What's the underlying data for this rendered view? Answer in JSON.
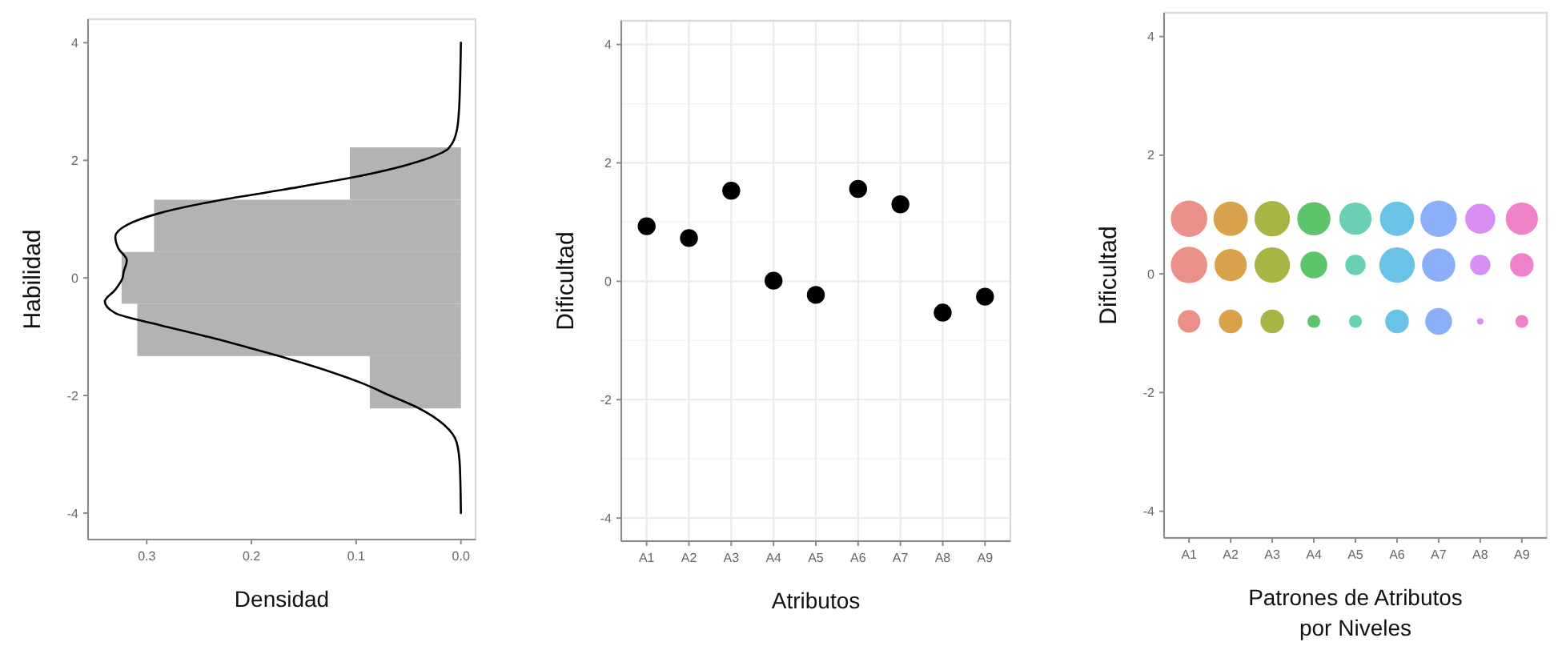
{
  "chart_data": [
    {
      "type": "histogram",
      "orientation": "horizontal",
      "xlabel": "Densidad",
      "ylabel": "Habilidad",
      "bins": [
        -2.22,
        -1.33,
        -0.44,
        0.44,
        1.33,
        2.22
      ],
      "series": [
        {
          "type": "histogram",
          "color": "#b3b3b3",
          "values": [
            0.087,
            0.309,
            0.324,
            0.293,
            0.106
          ]
        },
        {
          "type": "line",
          "color": "#000000",
          "x": [
            -4,
            -3.2,
            -2.8,
            -2.5,
            -2.2,
            -2.0,
            -1.8,
            -1.6,
            -1.4,
            -1.2,
            -1.0,
            -0.8,
            -0.6,
            -0.4,
            -0.2,
            0,
            0.1,
            0.3,
            0.5,
            0.7,
            0.9,
            1.1,
            1.3,
            1.5,
            1.7,
            2.0,
            2.2,
            2.5,
            2.8,
            3.2,
            4
          ],
          "values": [
            0,
            0.001,
            0.004,
            0.016,
            0.042,
            0.068,
            0.093,
            0.124,
            0.16,
            0.2,
            0.242,
            0.288,
            0.33,
            0.34,
            0.33,
            0.323,
            0.322,
            0.319,
            0.327,
            0.33,
            0.319,
            0.288,
            0.237,
            0.17,
            0.106,
            0.037,
            0.012,
            0.004,
            0.002,
            0.001,
            0
          ]
        }
      ],
      "xlim": [
        0.356,
        -0.014
      ],
      "xticks": [
        0.3,
        0.2,
        0.1,
        {
          "value": 0,
          "label": "0.0"
        }
      ],
      "ylim": [
        -4.45,
        4.4
      ],
      "yticks": [
        -4,
        -2,
        0,
        2,
        4
      ],
      "grid": false
    },
    {
      "type": "scatter",
      "xlabel": "Atributos",
      "ylabel": "Dificultad",
      "categories": [
        "A1",
        "A2",
        "A3",
        "A4",
        "A5",
        "A6",
        "A7",
        "A8",
        "A9"
      ],
      "series": [
        {
          "color": "#000000",
          "values": [
            0.93,
            0.73,
            1.53,
            0.01,
            -0.23,
            1.56,
            1.3,
            -0.53,
            -0.26
          ]
        }
      ],
      "ylim": [
        -4.39,
        4.4
      ],
      "yticks": [
        -4,
        -2,
        0,
        2,
        4
      ],
      "grid": true,
      "marker": "circle"
    },
    {
      "type": "bubble",
      "xlabel": "Patrones de Atributos\npor Niveles",
      "ylabel": "Dificultad",
      "categories": [
        "A1",
        "A2",
        "A3",
        "A4",
        "A5",
        "A6",
        "A7",
        "A8",
        "A9"
      ],
      "series": [
        {
          "colors": [
            "#eb8f89",
            "#d9a24a",
            "#a8b444",
            "#5dc46b",
            "#6acfb4",
            "#6ac3e6",
            "#8aaef8",
            "#d98ef3",
            "#ee82c8"
          ],
          "values": [
            0.93,
            0.93,
            0.93,
            0.93,
            0.93,
            0.93,
            0.93,
            0.93,
            0.93
          ],
          "sizes": [
            1,
            0.886,
            0.942,
            0.831,
            0.779,
            0.886,
            1,
            0.678,
            0.779
          ]
        },
        {
          "colors": [
            "#eb8f89",
            "#d9a24a",
            "#a8b444",
            "#5dc46b",
            "#6acfb4",
            "#6ac3e6",
            "#8aaef8",
            "#d98ef3",
            "#ee82c8"
          ],
          "values": [
            0.15,
            0.15,
            0.15,
            0.15,
            0.15,
            0.15,
            0.15,
            0.15,
            0.15
          ],
          "sizes": [
            1,
            0.779,
            0.942,
            0.541,
            0.312,
            0.942,
            0.831,
            0.312,
            0.419
          ]
        },
        {
          "colors": [
            "#eb8f89",
            "#d9a24a",
            "#a8b444",
            "#5dc46b",
            "#6acfb4",
            "#6ac3e6",
            "#8aaef8",
            "#d98ef3",
            "#ee82c8"
          ],
          "values": [
            -0.8,
            -0.8,
            -0.8,
            -0.8,
            -0.8,
            -0.8,
            -0.8,
            -0.8,
            -0.8
          ],
          "sizes": [
            0.382,
            0.419,
            0.419,
            0.125,
            0.125,
            0.419,
            0.541,
            0.031,
            0.125
          ]
        }
      ],
      "ylim": [
        -4.45,
        4.4
      ],
      "yticks": [
        -4,
        -2,
        0,
        2,
        4
      ],
      "grid": false
    }
  ]
}
